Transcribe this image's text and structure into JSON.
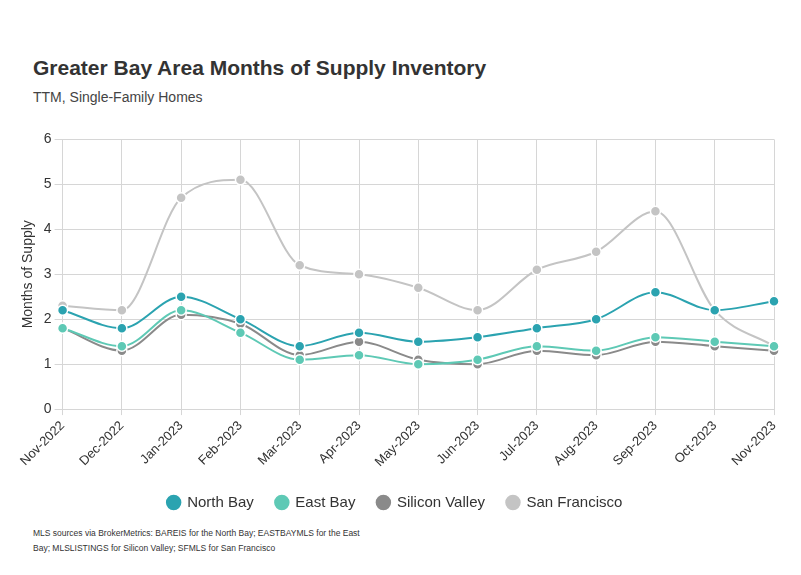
{
  "chart_data": {
    "type": "line",
    "title": "Greater Bay Area Months of Supply Inventory",
    "subtitle": "TTM, Single-Family Homes",
    "y_label": "Months of Supply",
    "note": "MLS sources via BrokerMetrics: BAREIS for the North Bay; EASTBAYMLS for the East Bay; MLSLISTINGS for Silicon Valley; SFMLS for San Francisco",
    "categories": [
      "Nov-2022",
      "Dec-2022",
      "Jan-2023",
      "Feb-2023",
      "Mar-2023",
      "Apr-2023",
      "May-2023",
      "Jun-2023",
      "Jul-2023",
      "Aug-2023",
      "Sep-2023",
      "Oct-2023",
      "Nov-2023"
    ],
    "series": [
      {
        "name": "North Bay",
        "color": "#2ba3b0",
        "values": [
          2.2,
          1.8,
          2.5,
          2.0,
          1.4,
          1.7,
          1.5,
          1.6,
          1.8,
          2.0,
          2.6,
          2.2,
          2.4
        ]
      },
      {
        "name": "East Bay",
        "color": "#5ec9b5",
        "values": [
          1.8,
          1.4,
          2.2,
          1.7,
          1.1,
          1.2,
          1.0,
          1.1,
          1.4,
          1.3,
          1.6,
          1.5,
          1.4
        ]
      },
      {
        "name": "Silicon Valley",
        "color": "#8a8a8a",
        "values": [
          1.8,
          1.3,
          2.1,
          1.9,
          1.2,
          1.5,
          1.1,
          1.0,
          1.3,
          1.2,
          1.5,
          1.4,
          1.3
        ]
      },
      {
        "name": "San Francisco",
        "color": "#c4c4c4",
        "values": [
          2.3,
          2.2,
          4.7,
          5.1,
          3.2,
          3.0,
          2.7,
          2.2,
          3.1,
          3.5,
          4.4,
          2.2,
          1.4
        ]
      }
    ],
    "ylim": [
      0,
      6
    ],
    "yticks": [
      0,
      1,
      2,
      3,
      4,
      5,
      6
    ],
    "grid": true,
    "legend": "bottom",
    "marker": "circle"
  }
}
